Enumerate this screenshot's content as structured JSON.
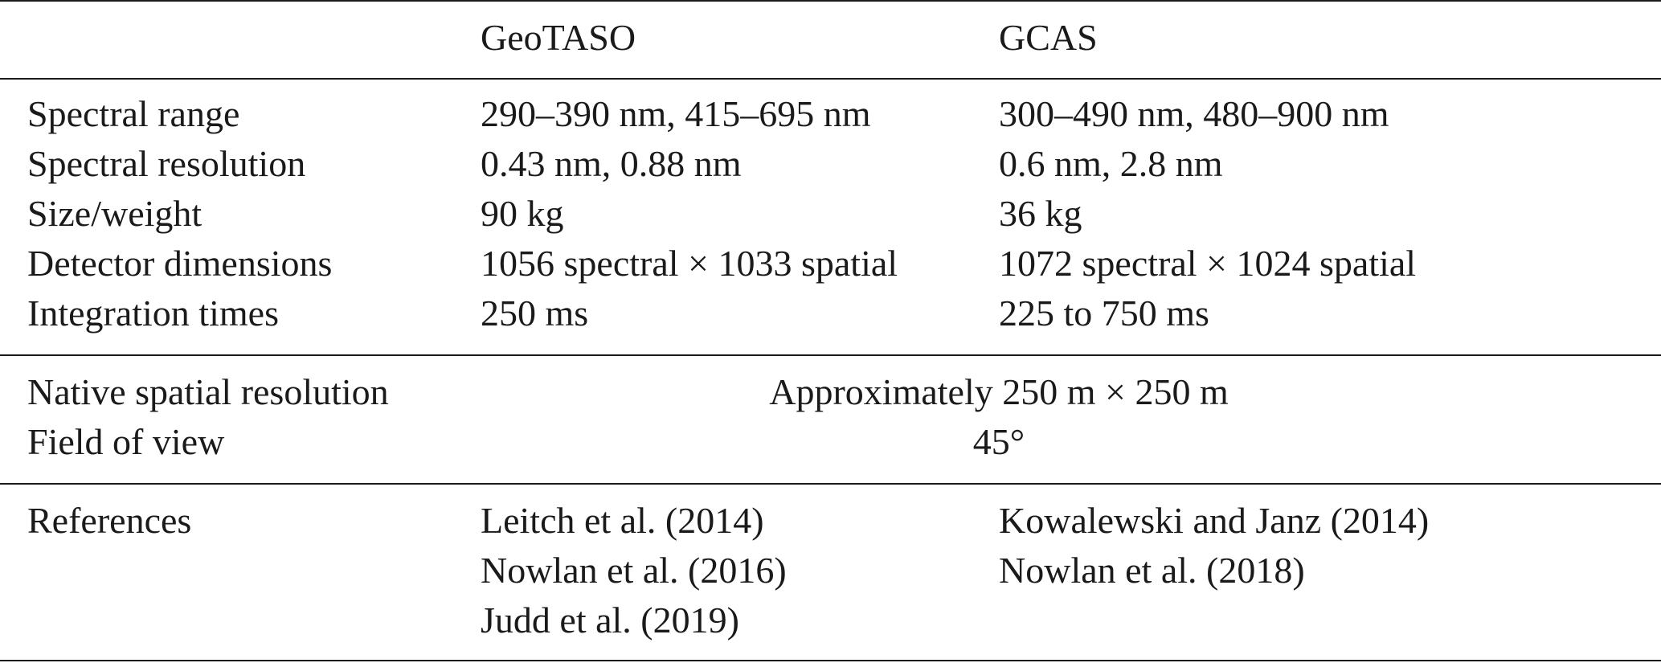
{
  "header": {
    "col0": "",
    "col1": "GeoTASO",
    "col2": "GCAS"
  },
  "rows": [
    {
      "label": "Spectral range",
      "geotaso": "290–390 nm, 415–695 nm",
      "gcas": "300–490 nm, 480–900 nm"
    },
    {
      "label": "Spectral resolution",
      "geotaso": "0.43 nm, 0.88 nm",
      "gcas": "0.6 nm, 2.8 nm"
    },
    {
      "label": "Size/weight",
      "geotaso": "90 kg",
      "gcas": "36 kg"
    },
    {
      "label": "Detector dimensions",
      "geotaso": "1056 spectral × 1033 spatial",
      "gcas": "1072 spectral × 1024 spatial"
    },
    {
      "label": "Integration times",
      "geotaso": "250 ms",
      "gcas": "225 to 750 ms"
    }
  ],
  "shared_rows": [
    {
      "label": "Native spatial resolution",
      "value": "Approximately 250 m × 250 m"
    },
    {
      "label": "Field of view",
      "value": "45°"
    }
  ],
  "references": {
    "label": "References",
    "geotaso": [
      "Leitch et al. (2014)",
      "Nowlan et al. (2016)",
      "Judd et al. (2019)"
    ],
    "gcas": [
      "Kowalewski and Janz (2014)",
      "Nowlan et al. (2018)"
    ]
  }
}
